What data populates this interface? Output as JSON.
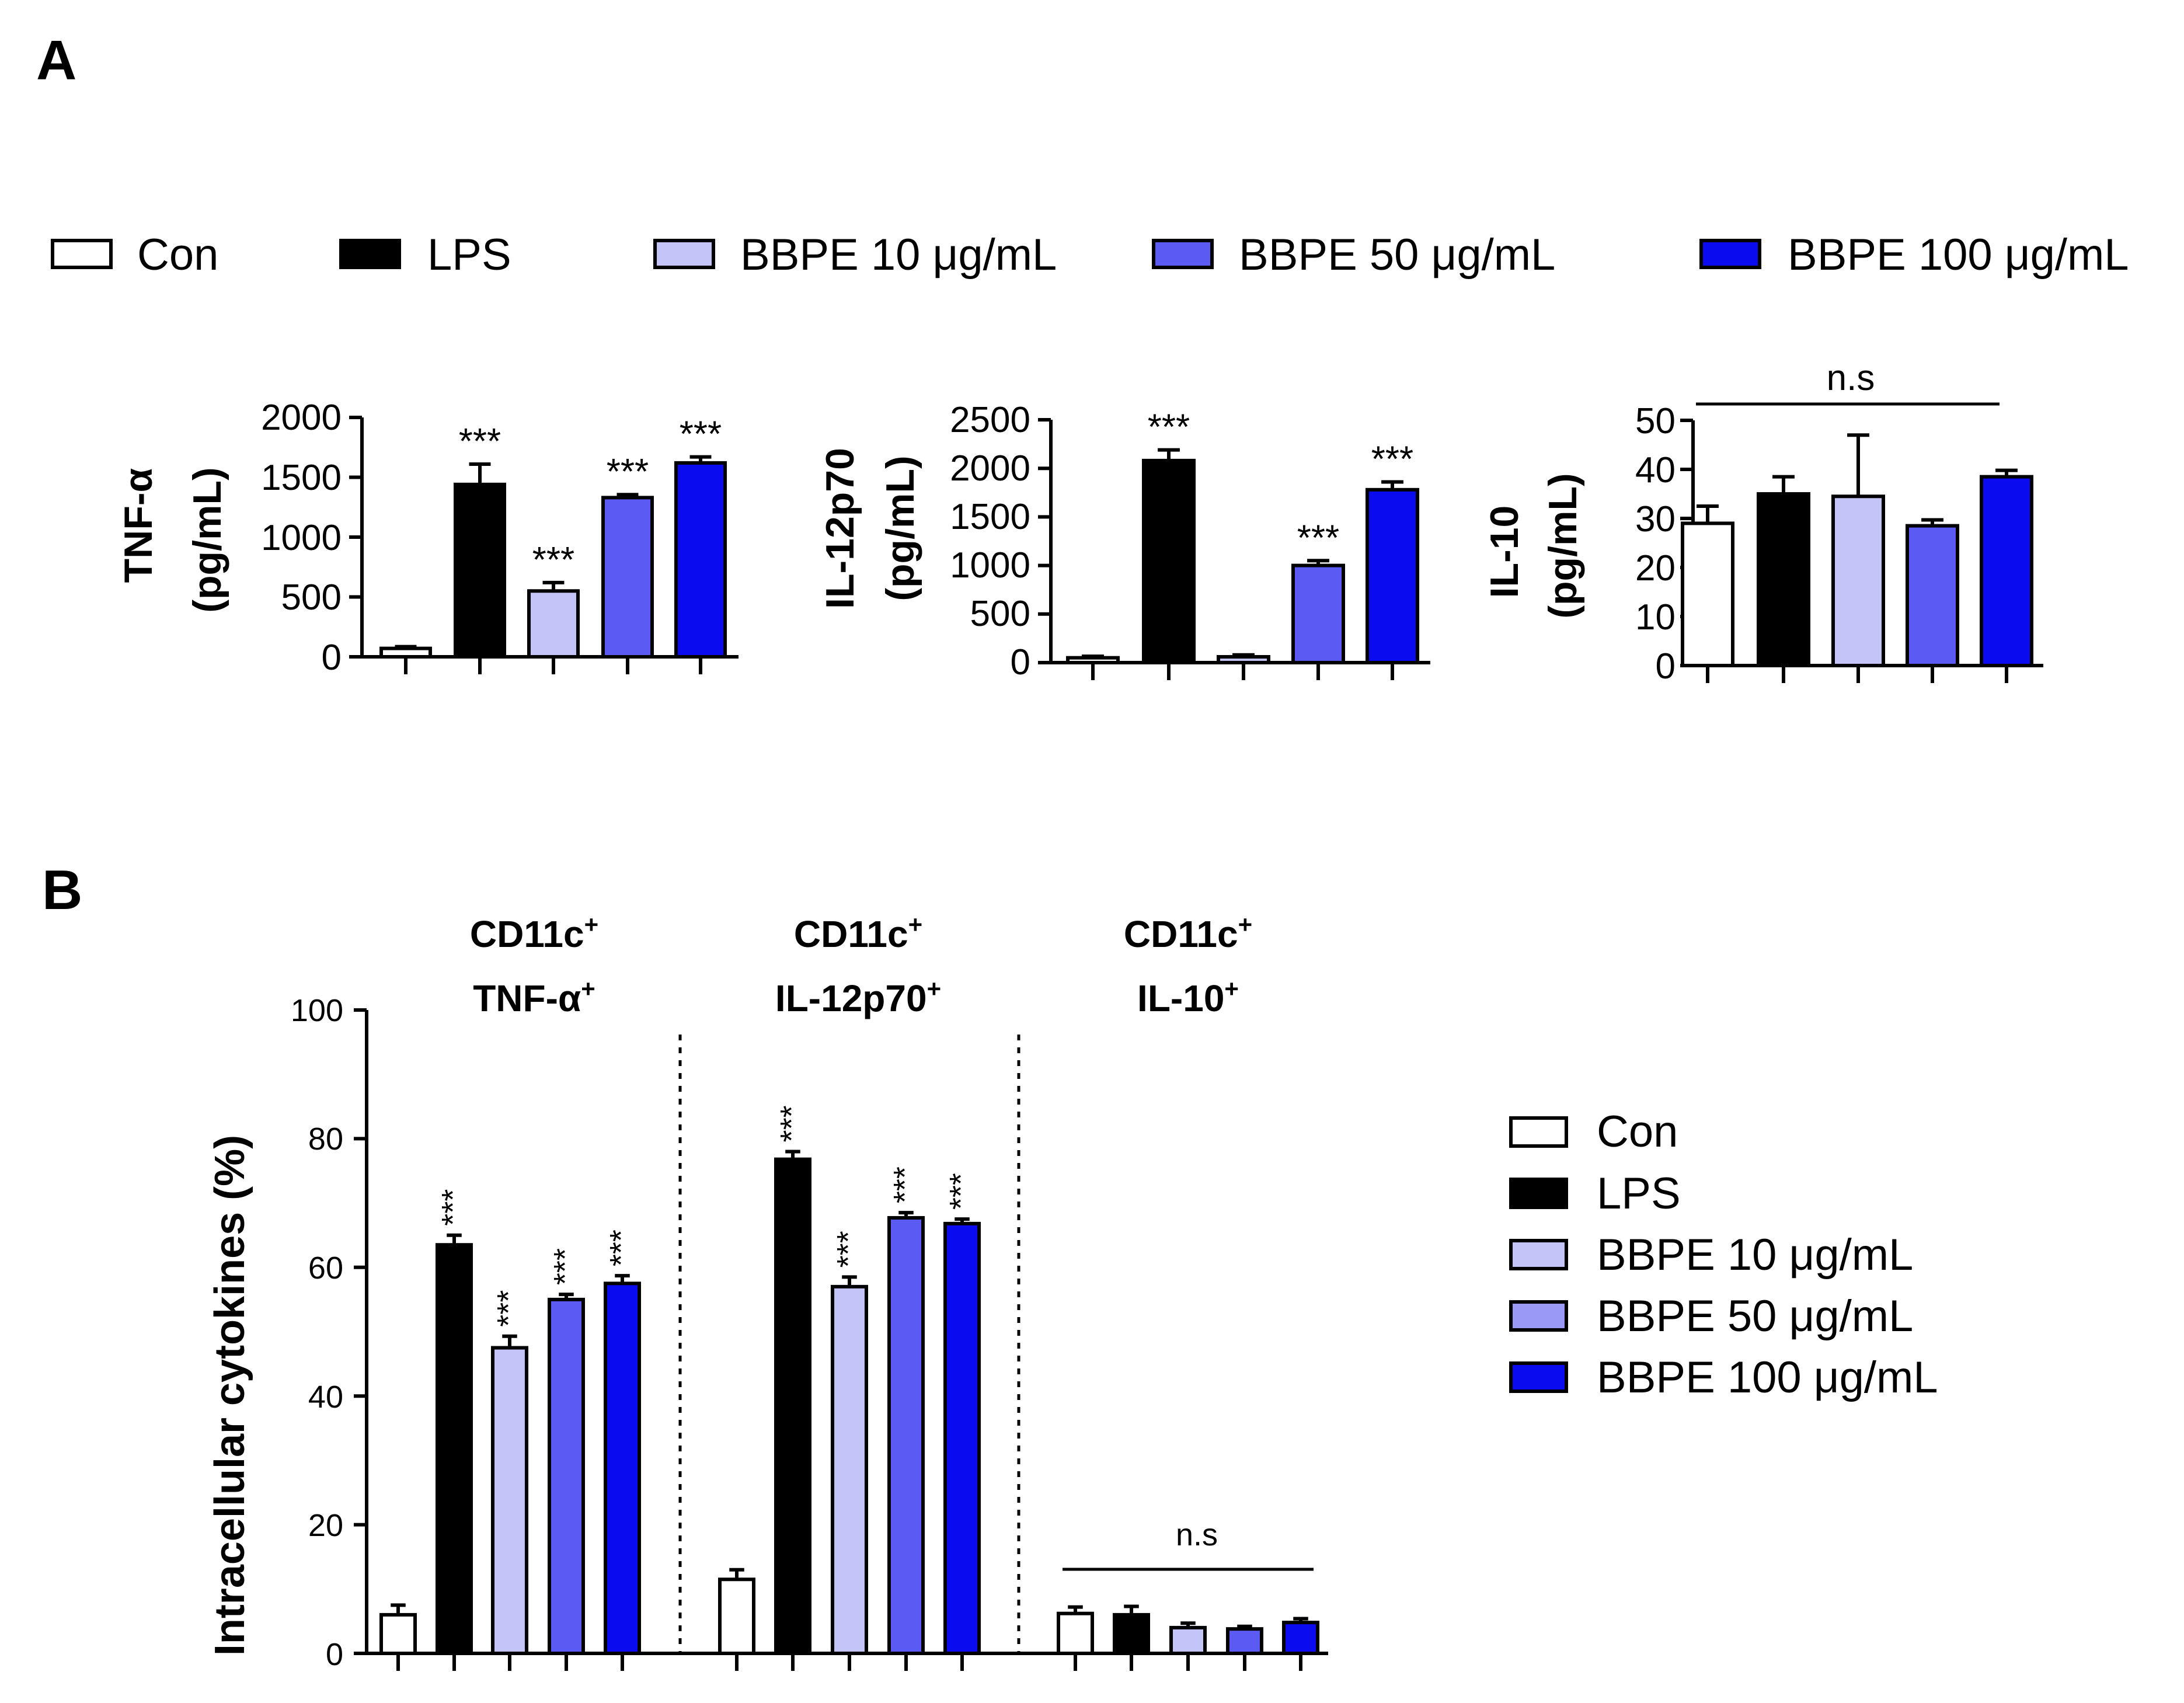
{
  "panels": {
    "a": "A",
    "b": "B"
  },
  "legend_top": [
    {
      "label": "Con",
      "color": "#ffffff"
    },
    {
      "label": "LPS",
      "color": "#000000"
    },
    {
      "label": "BBPE 10 μg/mL",
      "color": "#c4c4f8"
    },
    {
      "label": "BBPE 50 μg/mL",
      "color": "#5b5bf3"
    },
    {
      "label": "BBPE 100 μg/mL",
      "color": "#0b0bf0"
    }
  ],
  "legend_b": [
    {
      "label": "Con",
      "color": "#ffffff"
    },
    {
      "label": "LPS",
      "color": "#000000"
    },
    {
      "label": "BBPE 10 μg/mL",
      "color": "#c4c4f8"
    },
    {
      "label": "BBPE 50 μg/mL",
      "color": "#9a9af6"
    },
    {
      "label": "BBPE 100 μg/mL",
      "color": "#0b0bf0"
    }
  ],
  "panelA": {
    "ylabel_b": "(pg/mL)",
    "tnf": {
      "ylabel_a": "TNF-α",
      "ticks": [
        "0",
        "500",
        "1000",
        "1500",
        "2000"
      ]
    },
    "il12": {
      "ylabel_a": "IL-12p70",
      "ticks": [
        "0",
        "500",
        "1000",
        "1500",
        "2000",
        "2500"
      ]
    },
    "il10": {
      "ylabel_a": "IL-10",
      "ticks": [
        "0",
        "10",
        "20",
        "30",
        "40",
        "50"
      ],
      "ns": "n.s"
    }
  },
  "panelB": {
    "ylabel": "Intracellular cytokines (%)",
    "ticks": [
      "0",
      "20",
      "40",
      "60",
      "80",
      "100"
    ],
    "groups": [
      {
        "line1": "CD11c",
        "sup1": "+",
        "line2": "TNF-α",
        "sup2": "+"
      },
      {
        "line1": "CD11c",
        "sup1": "+",
        "line2": "IL-12p70",
        "sup2": "+"
      },
      {
        "line1": "CD11c",
        "sup1": "+",
        "line2": "IL-10",
        "sup2": "+"
      }
    ],
    "ns": "n.s"
  },
  "chart_data": [
    {
      "type": "bar",
      "id": "tnf",
      "title": "",
      "xlabel": "",
      "ylabel": "TNF-α (pg/mL)",
      "ylim": [
        0,
        2000
      ],
      "categories": [
        "Con",
        "LPS",
        "BBPE 10 μg/mL",
        "BBPE 50 μg/mL",
        "BBPE 100 μg/mL"
      ],
      "values": [
        70,
        1440,
        550,
        1330,
        1620
      ],
      "errors": [
        15,
        170,
        70,
        25,
        50
      ],
      "colors": [
        "#ffffff",
        "#000000",
        "#c4c4f8",
        "#5b5bf3",
        "#0b0bf0"
      ],
      "annotations": [
        "",
        "***",
        "***",
        "***",
        "***"
      ]
    },
    {
      "type": "bar",
      "id": "il12",
      "title": "",
      "xlabel": "",
      "ylabel": "IL-12p70 (pg/mL)",
      "ylim": [
        0,
        2500
      ],
      "categories": [
        "Con",
        "LPS",
        "BBPE 10 μg/mL",
        "BBPE 50 μg/mL",
        "BBPE 100 μg/mL"
      ],
      "values": [
        50,
        2080,
        60,
        1000,
        1780
      ],
      "errors": [
        15,
        110,
        20,
        50,
        80
      ],
      "colors": [
        "#ffffff",
        "#000000",
        "#c4c4f8",
        "#5b5bf3",
        "#0b0bf0"
      ],
      "annotations": [
        "",
        "***",
        "",
        "***",
        "***"
      ]
    },
    {
      "type": "bar",
      "id": "il10",
      "title": "",
      "xlabel": "",
      "ylabel": "IL-10 (pg/mL)",
      "ylim": [
        0,
        50
      ],
      "categories": [
        "Con",
        "LPS",
        "BBPE 10 μg/mL",
        "BBPE 50 μg/mL",
        "BBPE 100 μg/mL"
      ],
      "values": [
        29,
        35,
        34.5,
        28.5,
        38.5
      ],
      "errors": [
        3.5,
        3.5,
        12.5,
        1.2,
        1.3
      ],
      "colors": [
        "#ffffff",
        "#000000",
        "#c4c4f8",
        "#5b5bf3",
        "#0b0bf0"
      ],
      "annotations": [
        "",
        "",
        "",
        "",
        ""
      ],
      "significance": "n.s"
    },
    {
      "type": "bar",
      "id": "intracellular",
      "title": "",
      "xlabel": "",
      "ylabel": "Intracellular cytokines (%)",
      "ylim": [
        0,
        100
      ],
      "categories": [
        "CD11c+ TNF-α+",
        "CD11c+ IL-12p70+",
        "CD11c+ IL-10+"
      ],
      "series": [
        {
          "name": "Con",
          "color": "#ffffff",
          "values": [
            6,
            11.5,
            6.2
          ],
          "errors": [
            1.5,
            1.5,
            1
          ],
          "annotations": [
            "",
            "",
            ""
          ]
        },
        {
          "name": "LPS",
          "color": "#000000",
          "values": [
            63.5,
            76.8,
            6
          ],
          "errors": [
            1.5,
            1.2,
            1.3
          ],
          "annotations": [
            "***",
            "***",
            ""
          ]
        },
        {
          "name": "BBPE 10 μg/mL",
          "color": "#c4c4f8",
          "values": [
            47.5,
            57,
            4
          ],
          "errors": [
            1.8,
            1.5,
            0.7
          ],
          "annotations": [
            "***",
            "***",
            ""
          ]
        },
        {
          "name": "BBPE 50 μg/mL",
          "color": "#5b5bf3",
          "values": [
            55,
            67.7,
            3.8
          ],
          "errors": [
            0.8,
            0.8,
            0.4
          ],
          "annotations": [
            "***",
            "***",
            ""
          ]
        },
        {
          "name": "BBPE 100 μg/mL",
          "color": "#0b0bf0",
          "values": [
            57.5,
            66.8,
            4.8
          ],
          "errors": [
            1.2,
            0.7,
            0.6
          ],
          "annotations": [
            "***",
            "***",
            ""
          ]
        }
      ],
      "significance": "n.s"
    }
  ]
}
